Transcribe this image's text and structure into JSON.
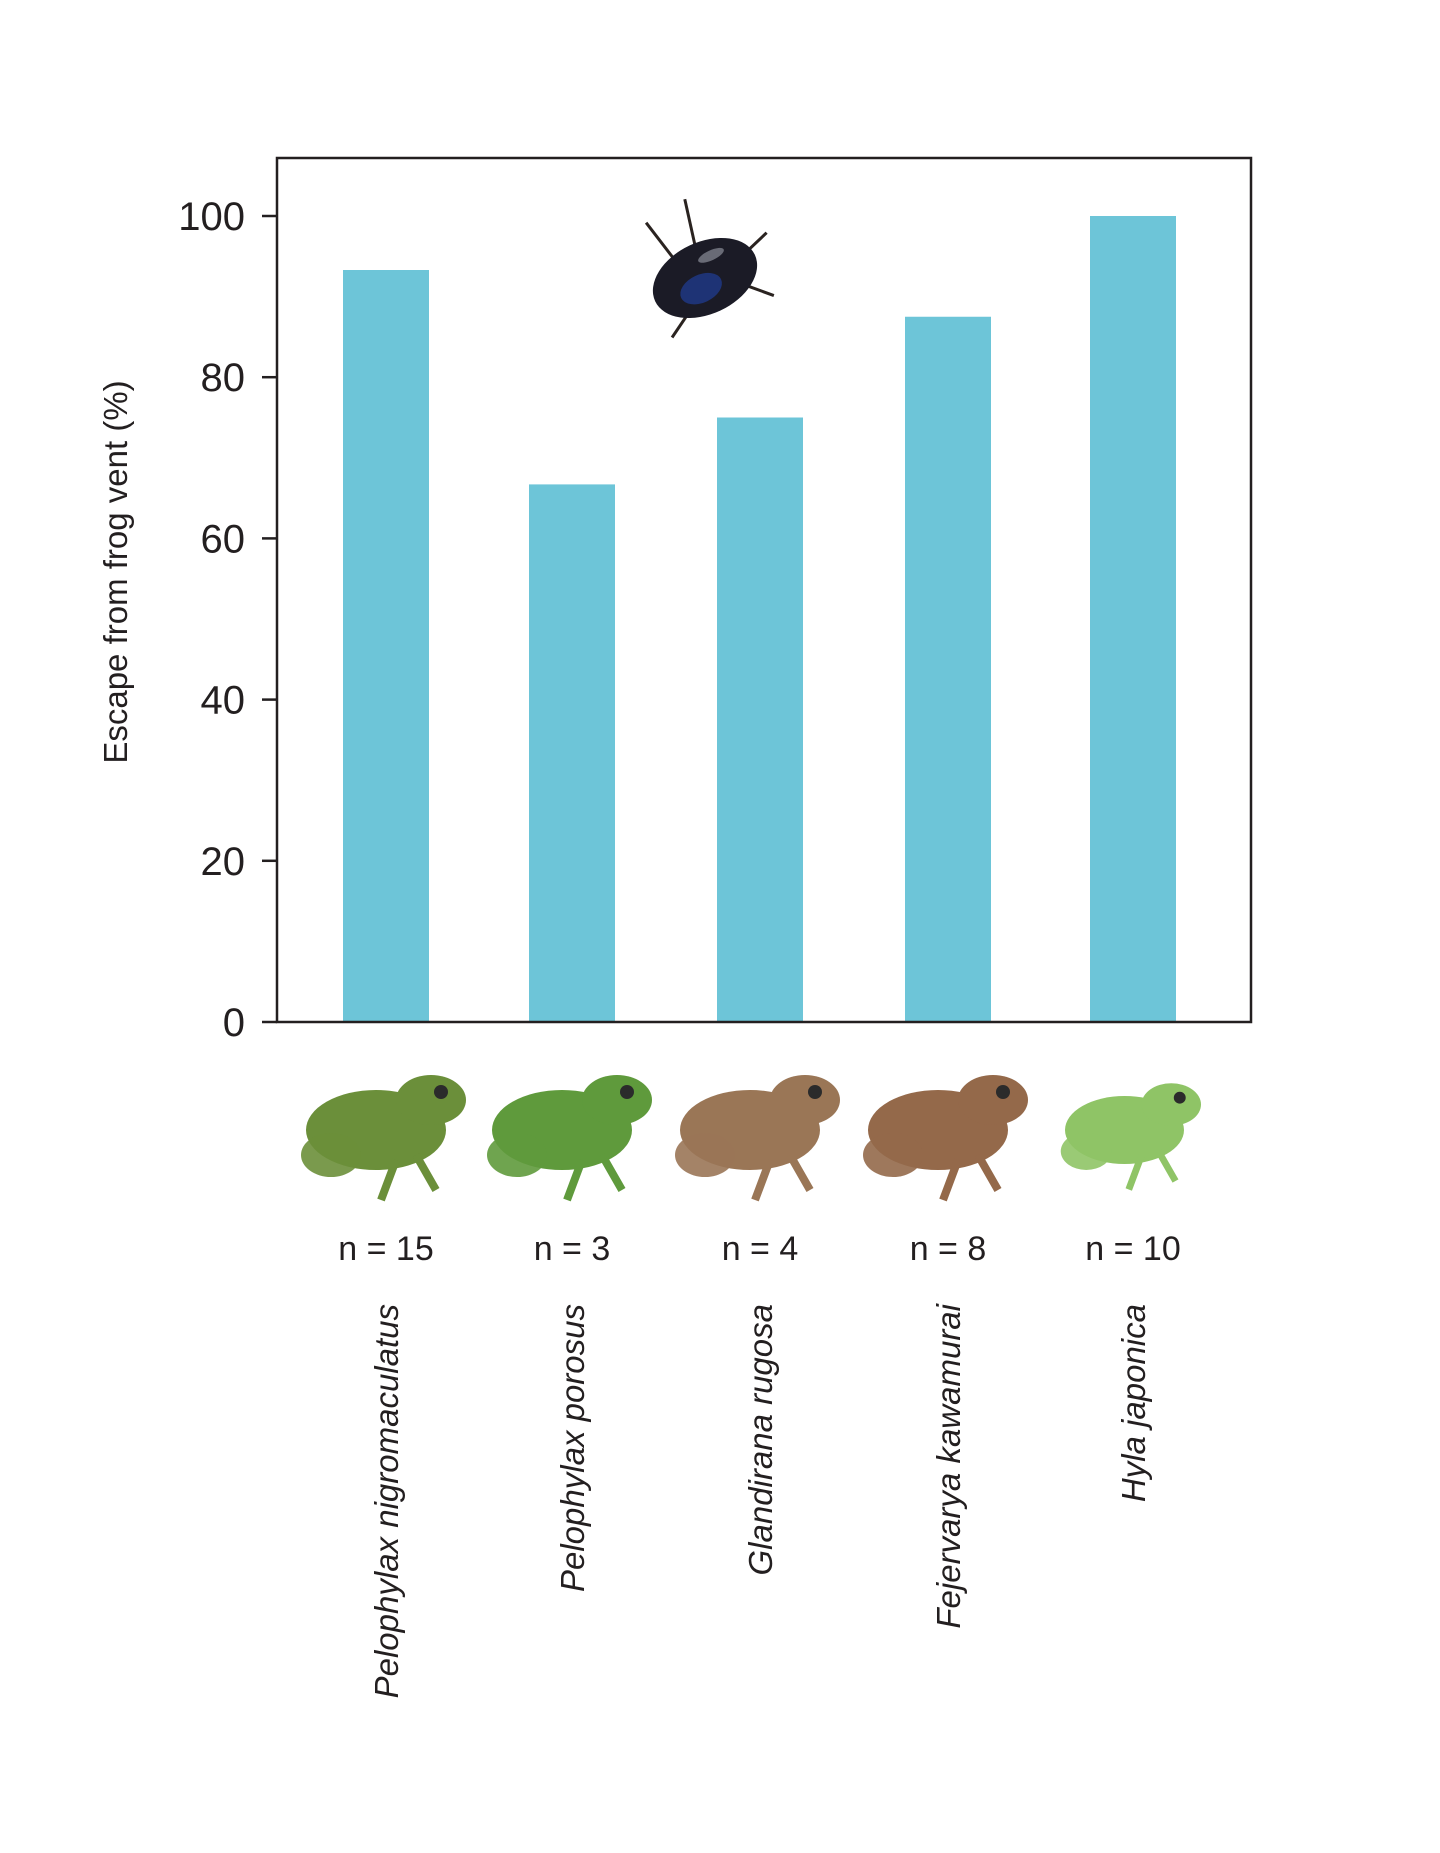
{
  "chart_data": {
    "type": "bar",
    "title": "",
    "xlabel": "",
    "ylabel": "Escape from frog vent (%)",
    "ylim": [
      0,
      107
    ],
    "yticks": [
      0,
      20,
      40,
      60,
      80,
      100
    ],
    "grid": false,
    "categories": [
      "Pelophylax nigromaculatus",
      "Pelophylax porosus",
      "Glandirana rugosa",
      "Fejervarya kawamurai",
      "Hyla japonica"
    ],
    "sample_sizes": [
      "n = 15",
      "n = 3",
      "n = 4",
      "n = 8",
      "n = 10"
    ],
    "values": [
      93.3,
      66.7,
      75.0,
      87.5,
      100.0
    ],
    "bar_color": "#6dc5d8",
    "frog_colors": [
      "#6b8f3a",
      "#5f9a3c",
      "#9a7656",
      "#94694a",
      "#8fc466"
    ],
    "inset_image": "water-beetle"
  }
}
